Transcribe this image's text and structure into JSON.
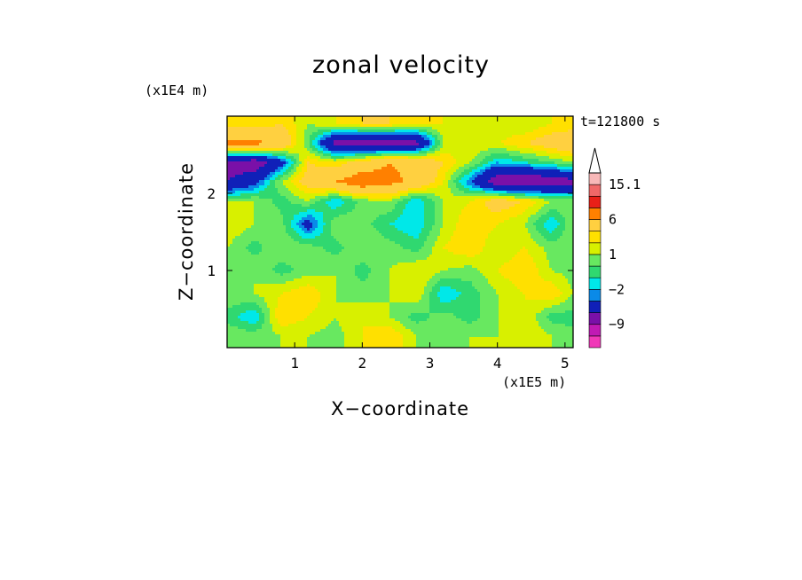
{
  "chart_data": {
    "type": "heatmap",
    "title": "zonal velocity",
    "xlabel": "X−coordinate",
    "ylabel": "Z−coordinate",
    "x_scale_label": "(x1E5 m)",
    "y_scale_label": "(x1E4 m)",
    "time_label": "t=121800 s",
    "xlim": [
      0,
      5.12
    ],
    "ylim": [
      0,
      3.0
    ],
    "x_ticks": [
      {
        "value": 1,
        "label": "1"
      },
      {
        "value": 2,
        "label": "2"
      },
      {
        "value": 3,
        "label": "3"
      },
      {
        "value": 4,
        "label": "4"
      },
      {
        "value": 5,
        "label": "5"
      }
    ],
    "y_ticks": [
      {
        "value": 1,
        "label": "1"
      },
      {
        "value": 2,
        "label": "2"
      }
    ],
    "colorbar": {
      "levels": [
        -15,
        -12,
        -9,
        -6,
        -3,
        -2,
        -1,
        0,
        1,
        2,
        3,
        6,
        9,
        12,
        15.1
      ],
      "colors": [
        "#f038b8",
        "#c01ab4",
        "#7a10a8",
        "#1020b8",
        "#0a8ae8",
        "#00e8e8",
        "#30d870",
        "#68e860",
        "#d8f000",
        "#ffe000",
        "#ffd040",
        "#ff8000",
        "#e82018",
        "#f06868",
        "#f8b8b8"
      ],
      "labels": [
        {
          "value": -9,
          "label": "−9"
        },
        {
          "value": -2,
          "label": "−2"
        },
        {
          "value": 1,
          "label": "1"
        },
        {
          "value": 6,
          "label": "6"
        },
        {
          "value": 15.1,
          "label": "15.1"
        }
      ],
      "extend_max": true
    },
    "field_samples_x": [
      0.0,
      0.4,
      0.8,
      1.2,
      1.6,
      2.0,
      2.4,
      2.8,
      3.2,
      3.6,
      4.0,
      4.4,
      4.8,
      5.12
    ],
    "field_samples_z": [
      2.9,
      2.65,
      2.4,
      2.15,
      1.9,
      1.6,
      1.3,
      1.0,
      0.7,
      0.4,
      0.15
    ],
    "field_values": [
      [
        2,
        2,
        3,
        1,
        2,
        3,
        3,
        2,
        2,
        1,
        1,
        1,
        2,
        2
      ],
      [
        7,
        7,
        5,
        0,
        -7,
        -8,
        -8,
        -7,
        1,
        2,
        2,
        3,
        4,
        5
      ],
      [
        -7,
        -8,
        -4,
        3,
        2,
        4,
        6,
        5,
        3,
        1,
        -2,
        -1,
        0,
        1
      ],
      [
        -6,
        -4,
        1,
        4,
        6,
        8,
        7,
        5,
        2,
        -3,
        -8,
        -9,
        -8,
        -7
      ],
      [
        1,
        1,
        -0.5,
        1,
        -2,
        0.5,
        1,
        -2,
        1,
        2,
        4,
        3,
        1,
        0.5
      ],
      [
        2,
        1,
        0.5,
        -4,
        1,
        0.5,
        -1,
        -2,
        1,
        3,
        2,
        1,
        -2,
        1
      ],
      [
        1,
        -0.5,
        1,
        0.5,
        -0.5,
        1,
        0.5,
        -0.5,
        2,
        3,
        1,
        2,
        0.5,
        1
      ],
      [
        0.5,
        1,
        -0.5,
        0.5,
        1,
        -0.5,
        1,
        2,
        1,
        0.5,
        2,
        3,
        1,
        0.5
      ],
      [
        1,
        1,
        2,
        3,
        1,
        0.5,
        1,
        2,
        -2,
        -0.5,
        1,
        2,
        3,
        1
      ],
      [
        -0.5,
        -2,
        3,
        2,
        1,
        2,
        1,
        -0.5,
        0.5,
        -0.5,
        1,
        2,
        -0.5,
        -0.5
      ],
      [
        1,
        0.5,
        1,
        1,
        0.5,
        2,
        3,
        1,
        0.5,
        1,
        1,
        2,
        1,
        0.5
      ]
    ]
  }
}
